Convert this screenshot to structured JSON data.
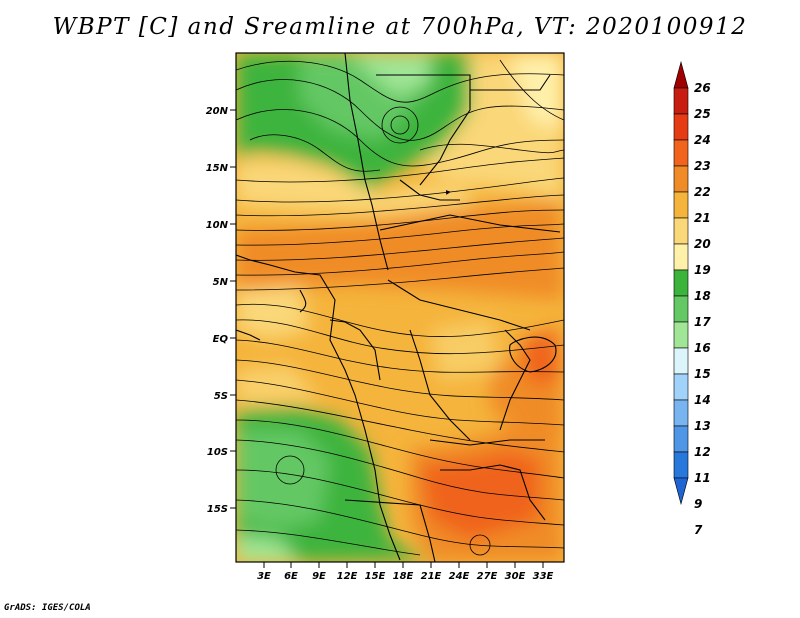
{
  "title": "WBPT [C] and Sreamline at 700hPa, VT: 2020100912",
  "credit": "GrADS: IGES/COLA",
  "lat_labels": [
    "20N",
    "15N",
    "10N",
    "5N",
    "EQ",
    "5S",
    "10S",
    "15S"
  ],
  "lon_labels": [
    "3E",
    "6E",
    "9E",
    "12E",
    "15E",
    "18E",
    "21E",
    "24E",
    "27E",
    "30E",
    "33E"
  ],
  "colorbar": {
    "labels": [
      "26",
      "25",
      "24",
      "23",
      "22",
      "21",
      "20",
      "19",
      "18",
      "17",
      "16",
      "15",
      "14",
      "13",
      "12",
      "11",
      "9",
      "7"
    ],
    "colors": [
      "#a00000",
      "#c81e12",
      "#e63c16",
      "#f0641e",
      "#f08c28",
      "#f5b43c",
      "#fad778",
      "#fff0aa",
      "#3cb43c",
      "#64c864",
      "#a0e696",
      "#dcf5fa",
      "#a0d2fa",
      "#78b4f0",
      "#5096e6",
      "#2878dc",
      "#1e64d2"
    ]
  }
}
